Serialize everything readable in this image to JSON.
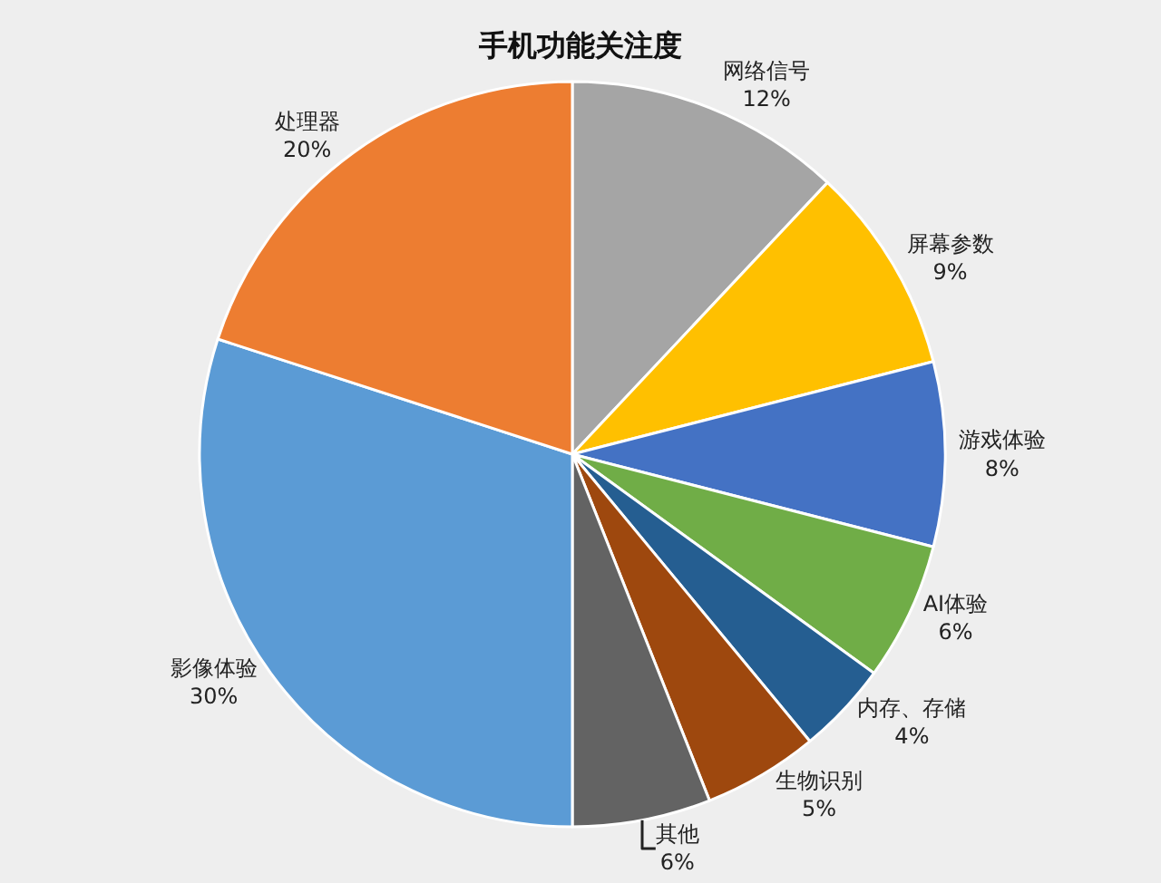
{
  "chart_data": {
    "type": "pie",
    "title": "手机功能关注度",
    "categories": [
      "网络信号",
      "屏幕参数",
      "游戏体验",
      "AI体验",
      "内存、存储",
      "生物识别",
      "其他",
      "影像体验",
      "处理器"
    ],
    "values": [
      12,
      9,
      8,
      6,
      4,
      5,
      6,
      30,
      20
    ],
    "value_labels": [
      "12%",
      "9%",
      "8%",
      "6%",
      "4%",
      "5%",
      "6%",
      "30%",
      "20%"
    ],
    "colors": [
      "#a5a5a5",
      "#ffc000",
      "#4472c4",
      "#70ad47",
      "#255e91",
      "#9e480e",
      "#636363",
      "#5b9bd5",
      "#ed7d31"
    ],
    "legend": false
  }
}
